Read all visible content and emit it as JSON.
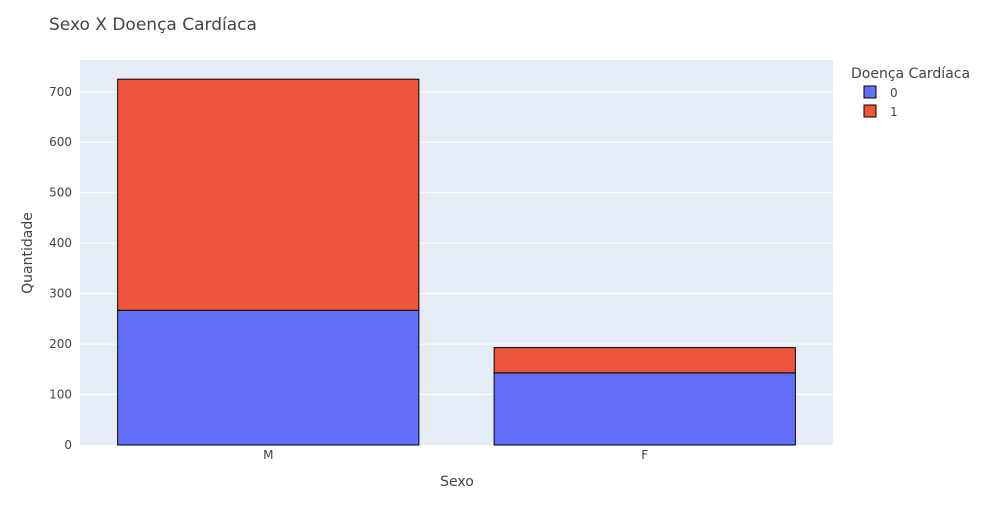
{
  "chart_data": {
    "type": "bar",
    "barmode": "stack",
    "title": "Sexo X Doença Cardíaca",
    "xlabel": "Sexo",
    "ylabel": "Quantidade",
    "categories": [
      "M",
      "F"
    ],
    "series": [
      {
        "name": "0",
        "values": [
          267,
          143
        ],
        "color": "#636efa"
      },
      {
        "name": "1",
        "values": [
          458,
          50
        ],
        "color": "#ef553b"
      }
    ],
    "ylim": [
      0,
      763
    ],
    "yticks": [
      0,
      100,
      200,
      300,
      400,
      500,
      600,
      700
    ],
    "grid": true,
    "legend": {
      "title": "Doença Cardíaca",
      "position": "top-right"
    },
    "colors": {
      "plot_bg": "#e5ecf6",
      "grid": "#ffffff",
      "text": "#444444",
      "bar_outline": "#000000"
    }
  }
}
